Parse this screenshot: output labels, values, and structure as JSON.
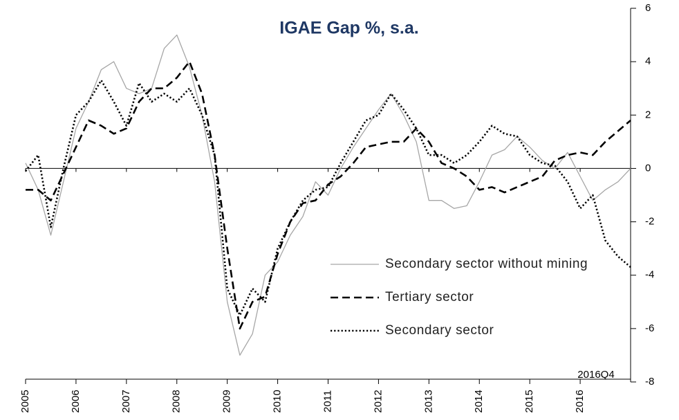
{
  "chart_data": {
    "type": "line",
    "title": "IGAE Gap %, s.a.",
    "annotations": [
      "2016Q4"
    ],
    "x": [
      2005,
      2005.25,
      2005.5,
      2005.75,
      2006,
      2006.25,
      2006.5,
      2006.75,
      2007,
      2007.25,
      2007.5,
      2007.75,
      2008,
      2008.25,
      2008.5,
      2008.75,
      2009,
      2009.25,
      2009.5,
      2009.75,
      2010,
      2010.25,
      2010.5,
      2010.75,
      2011,
      2011.25,
      2011.5,
      2011.75,
      2012,
      2012.25,
      2012.5,
      2012.75,
      2013,
      2013.25,
      2013.5,
      2013.75,
      2014,
      2014.25,
      2014.5,
      2014.75,
      2015,
      2015.25,
      2015.5,
      2015.75,
      2016,
      2016.25,
      2016.5,
      2016.75,
      2017
    ],
    "series": [
      {
        "name": "Secondary sector without mining",
        "color": "#a6a6a6",
        "style": "solid",
        "values": [
          0.2,
          -0.8,
          -2.5,
          -0.5,
          1.5,
          2.5,
          3.7,
          4.0,
          3.0,
          2.8,
          3.0,
          4.5,
          5.0,
          3.8,
          2.0,
          -0.5,
          -5.0,
          -7.0,
          -6.2,
          -4.0,
          -3.5,
          -2.5,
          -1.8,
          -0.5,
          -1.0,
          0.0,
          0.8,
          1.5,
          2.2,
          2.8,
          2.0,
          1.0,
          -1.2,
          -1.2,
          -1.5,
          -1.4,
          -0.5,
          0.5,
          0.7,
          1.2,
          0.8,
          0.3,
          0.0,
          0.6,
          -0.3,
          -1.2,
          -0.8,
          -0.5,
          0.0
        ]
      },
      {
        "name": "Tertiary sector",
        "color": "#000000",
        "style": "dashed",
        "values": [
          -0.8,
          -0.8,
          -1.2,
          -0.2,
          0.8,
          1.8,
          1.6,
          1.3,
          1.5,
          2.5,
          3.0,
          3.0,
          3.4,
          4.0,
          2.8,
          0.5,
          -3.0,
          -6.0,
          -5.0,
          -4.8,
          -3.2,
          -2.0,
          -1.3,
          -1.2,
          -0.6,
          -0.3,
          0.2,
          0.8,
          0.9,
          1.0,
          1.0,
          1.5,
          1.0,
          0.2,
          0.0,
          -0.3,
          -0.8,
          -0.7,
          -0.9,
          -0.7,
          -0.5,
          -0.3,
          0.3,
          0.5,
          0.6,
          0.5,
          1.0,
          1.4,
          1.8
        ]
      },
      {
        "name": "Secondary sector",
        "color": "#000000",
        "style": "dotted",
        "values": [
          -0.1,
          0.5,
          -2.2,
          0.0,
          2.0,
          2.5,
          3.3,
          2.5,
          1.6,
          3.2,
          2.5,
          2.8,
          2.5,
          3.0,
          2.0,
          0.5,
          -4.5,
          -5.5,
          -4.5,
          -5.0,
          -3.0,
          -2.0,
          -1.2,
          -0.8,
          -0.7,
          0.2,
          1.0,
          1.8,
          2.0,
          2.8,
          2.2,
          1.5,
          0.5,
          0.5,
          0.2,
          0.5,
          1.0,
          1.6,
          1.3,
          1.2,
          0.5,
          0.2,
          0.1,
          -0.5,
          -1.5,
          -1.0,
          -2.7,
          -3.3,
          -3.7
        ]
      }
    ],
    "xlim": [
      2005,
      2017
    ],
    "xticks": [
      2005,
      2006,
      2007,
      2008,
      2009,
      2010,
      2011,
      2012,
      2013,
      2014,
      2015,
      2016
    ],
    "ylim": [
      -8,
      6
    ],
    "yticks": [
      -8,
      -6,
      -4,
      -2,
      0,
      2,
      4,
      6
    ],
    "y_axis_side": "right"
  }
}
